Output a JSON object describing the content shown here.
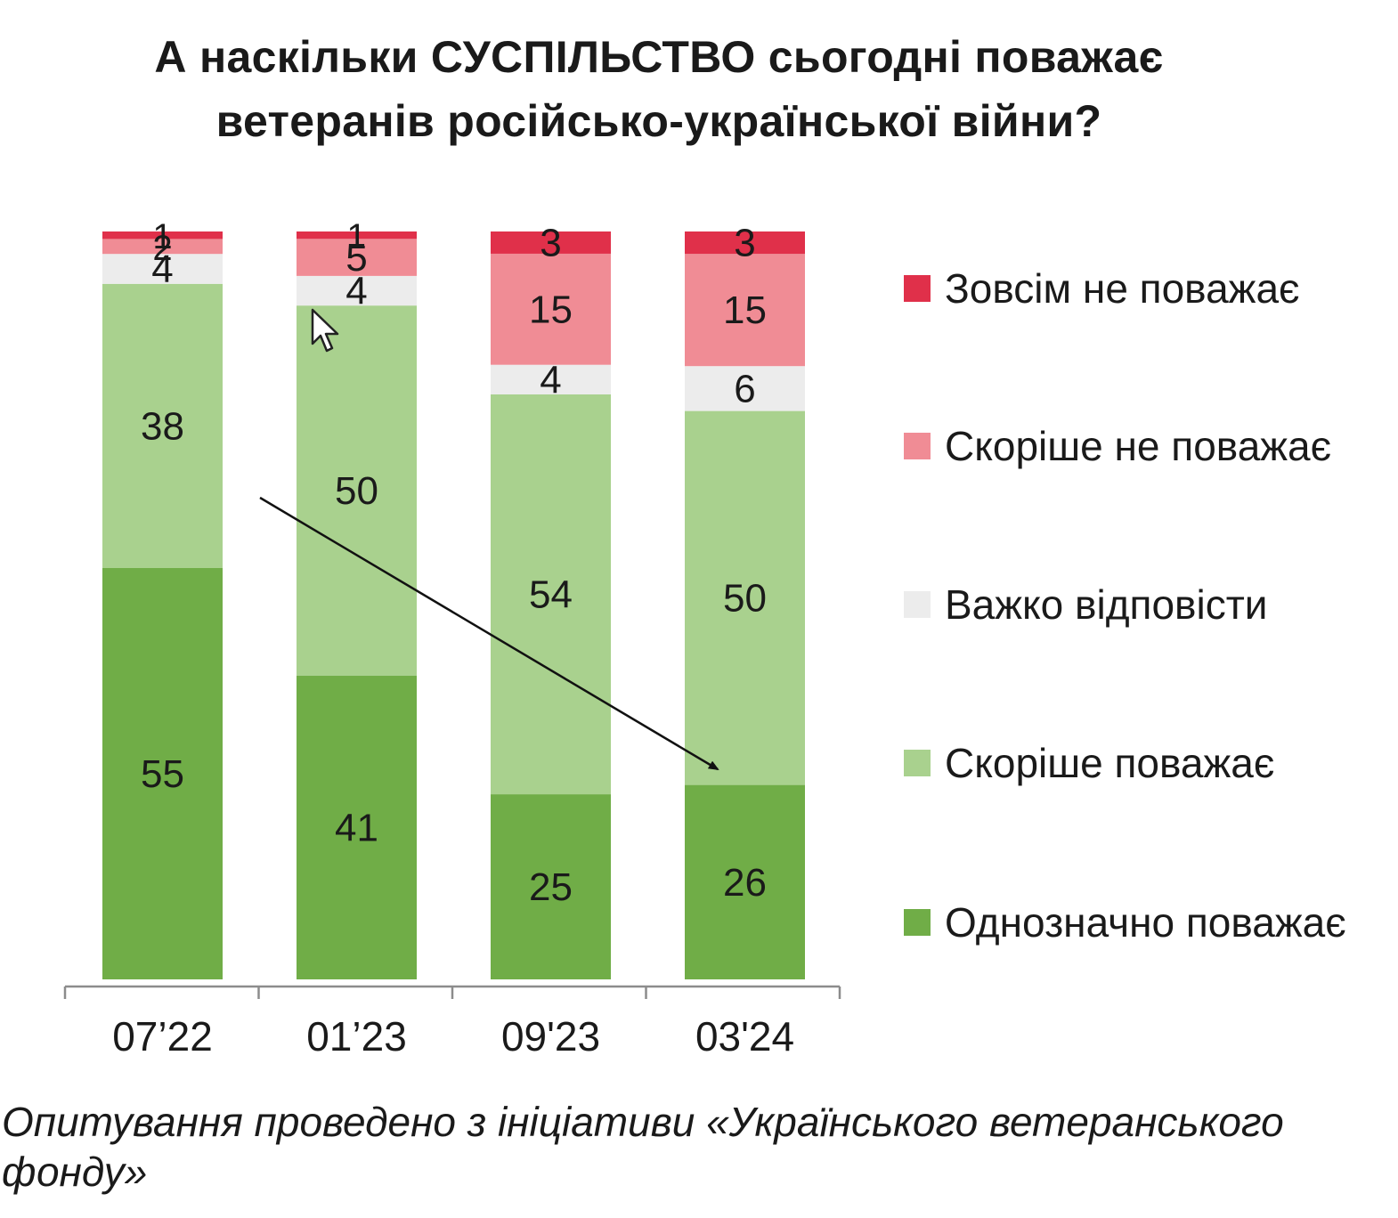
{
  "title": {
    "line1": "А наскільки СУСПІЛЬСТВО сьогодні поважає",
    "line2": "ветеранів російсько-української війни?"
  },
  "caption": {
    "line1": "Опитування проведено з ініціативи «Українського ветеранського",
    "line2": "фонду»"
  },
  "chart_data": {
    "type": "bar",
    "stacked": true,
    "categories": [
      "07’22",
      "01’23",
      "09'23",
      "03'24"
    ],
    "series": [
      {
        "name": "Однозначно поважає",
        "color": "#70ad47",
        "values": [
          55,
          41,
          25,
          26
        ]
      },
      {
        "name": "Скоріше поважає",
        "color": "#a9d18e",
        "values": [
          38,
          50,
          54,
          50
        ]
      },
      {
        "name": "Важко відповісти",
        "color": "#ececec",
        "values": [
          4,
          4,
          4,
          6
        ]
      },
      {
        "name": "Скоріше не поважає",
        "color": "#f08c95",
        "values": [
          2,
          5,
          15,
          15
        ]
      },
      {
        "name": "Зовсім не поважає",
        "color": "#e0304a",
        "values": [
          1,
          1,
          3,
          3
        ]
      }
    ],
    "legend_order": [
      "Зовсім не поважає",
      "Скоріше не поважає",
      "Важко відповісти",
      "Скоріше поважає",
      "Однозначно поважає"
    ],
    "legend_position": "right",
    "ylim": [
      0,
      100
    ],
    "grid": false,
    "annotations": [
      {
        "type": "trend-arrow",
        "from_category": "07’22",
        "to_category": "03'24",
        "direction": "down"
      }
    ]
  }
}
